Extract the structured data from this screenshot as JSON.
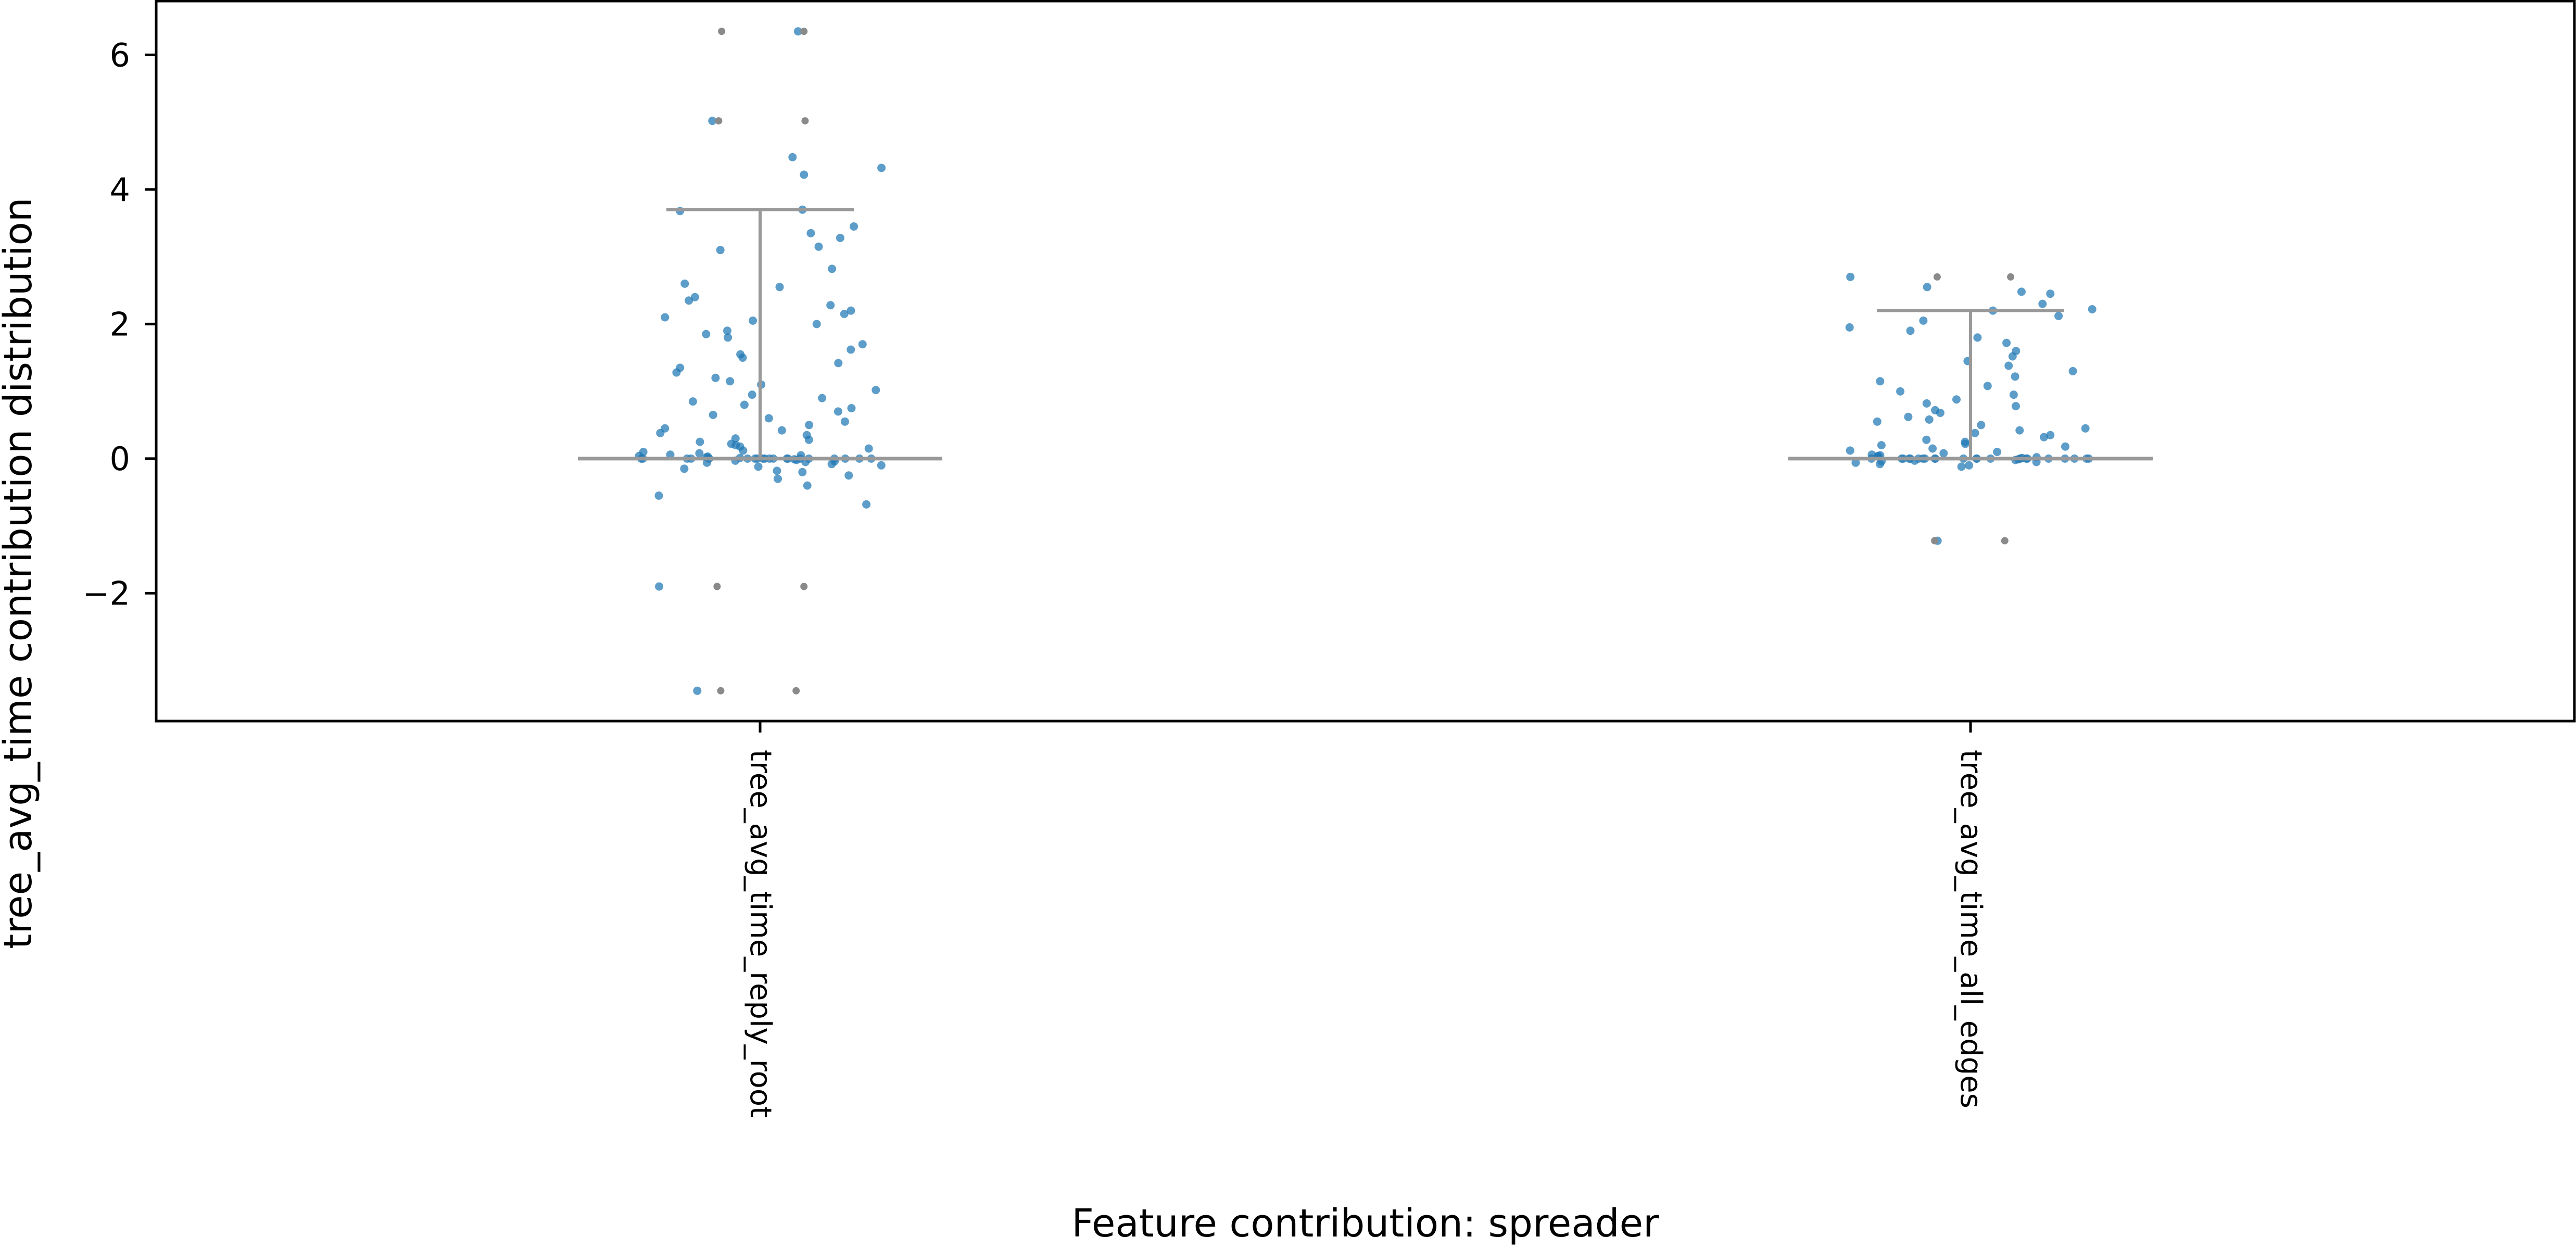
{
  "chart_data": {
    "type": "scatter",
    "title": "",
    "xlabel": "Feature contribution: spreader",
    "ylabel": "tree_avg_time contribution distribution",
    "categories": [
      "tree_avg_time_reply_root",
      "tree_avg_time_all_edges"
    ],
    "ylim": [
      -3.9,
      6.8
    ],
    "yticks": [
      -2,
      0,
      2,
      4,
      6
    ],
    "ytick_labels": [
      "−2",
      "0",
      "2",
      "4",
      "6"
    ],
    "grid": false,
    "point_color": "#1f77b4",
    "range_line_color": "#999999",
    "series": [
      {
        "category": "tree_avg_time_reply_root",
        "median": 0.0,
        "upper_whisker": 3.7,
        "extremes": [
          6.35,
          5.02,
          -1.9,
          -3.45
        ],
        "values": [
          6.35,
          5.02,
          4.48,
          4.32,
          4.22,
          3.7,
          3.68,
          3.45,
          3.35,
          3.28,
          3.15,
          3.1,
          2.82,
          2.6,
          2.55,
          2.4,
          2.35,
          2.28,
          2.2,
          2.15,
          2.1,
          2.05,
          2.0,
          1.9,
          1.85,
          1.8,
          1.7,
          1.62,
          1.55,
          1.5,
          1.42,
          1.35,
          1.28,
          1.2,
          1.15,
          1.1,
          1.02,
          0.95,
          0.9,
          0.85,
          0.8,
          0.75,
          0.7,
          0.65,
          0.6,
          0.55,
          0.5,
          0.45,
          0.42,
          0.38,
          0.35,
          0.3,
          0.28,
          0.25,
          0.22,
          0.2,
          0.18,
          0.15,
          0.12,
          0.1,
          0.08,
          0.06,
          0.05,
          0.04,
          0.03,
          0.02,
          0.01,
          0.0,
          0.0,
          0.0,
          0.0,
          0.0,
          0.0,
          0.0,
          0.0,
          0.0,
          0.0,
          0.0,
          0.0,
          0.0,
          0.0,
          0.0,
          0.0,
          0.0,
          0.0,
          0.0,
          0.0,
          -0.01,
          -0.02,
          -0.03,
          -0.04,
          -0.05,
          -0.06,
          -0.08,
          -0.1,
          -0.12,
          -0.15,
          -0.18,
          -0.2,
          -0.25,
          -0.3,
          -0.4,
          -0.55,
          -0.68,
          -1.9,
          -3.45
        ]
      },
      {
        "category": "tree_avg_time_all_edges",
        "median": 0.0,
        "upper_whisker": 2.2,
        "extremes": [
          2.7,
          -1.22
        ],
        "values": [
          2.7,
          2.55,
          2.48,
          2.45,
          2.3,
          2.22,
          2.2,
          2.12,
          2.05,
          1.95,
          1.9,
          1.8,
          1.72,
          1.6,
          1.52,
          1.45,
          1.38,
          1.3,
          1.22,
          1.15,
          1.08,
          1.0,
          0.95,
          0.88,
          0.82,
          0.78,
          0.72,
          0.68,
          0.62,
          0.58,
          0.55,
          0.5,
          0.45,
          0.42,
          0.38,
          0.35,
          0.32,
          0.28,
          0.25,
          0.22,
          0.2,
          0.18,
          0.15,
          0.12,
          0.1,
          0.08,
          0.06,
          0.05,
          0.04,
          0.03,
          0.02,
          0.01,
          0.0,
          0.0,
          0.0,
          0.0,
          0.0,
          0.0,
          0.0,
          0.0,
          0.0,
          0.0,
          0.0,
          0.0,
          0.0,
          0.0,
          0.0,
          0.0,
          0.0,
          0.0,
          0.0,
          0.0,
          0.0,
          0.0,
          -0.01,
          -0.02,
          -0.03,
          -0.04,
          -0.05,
          -0.06,
          -0.08,
          -0.1,
          -0.12,
          -1.22
        ]
      }
    ]
  }
}
